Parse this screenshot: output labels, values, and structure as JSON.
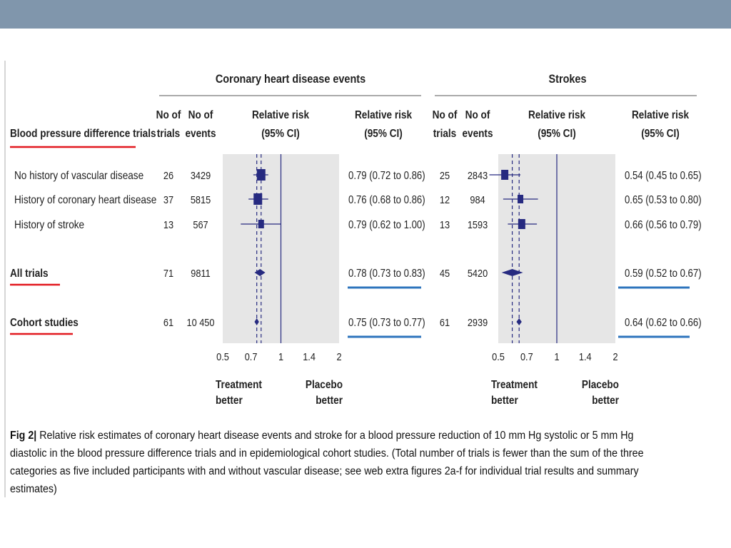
{
  "chart_data": {
    "type": "forest",
    "row_header": "Blood pressure difference trials",
    "panels": [
      {
        "title": "Coronary heart disease events",
        "col_trials": [
          "No of",
          "trials"
        ],
        "col_events": [
          "No of",
          "events"
        ],
        "col_rr_plot": [
          "Relative risk",
          "(95% CI)"
        ],
        "col_rr_text": [
          "Relative risk",
          "(95% CI)"
        ],
        "x_ticks": [
          "0.5",
          "0.7",
          "1",
          "1.4",
          "2"
        ],
        "x_tick_values": [
          0.5,
          0.7,
          1,
          1.4,
          2
        ],
        "xlim": [
          0.5,
          2
        ],
        "x_scale": "log",
        "ref_line": 1,
        "dashed_lines": [
          0.75,
          0.79
        ],
        "label_left": [
          "Treatment",
          "better"
        ],
        "label_right": [
          "Placebo",
          "better"
        ],
        "rows": [
          {
            "label": "No history of vascular disease",
            "trials": "26",
            "events": "3429",
            "rr": 0.79,
            "lo": 0.72,
            "hi": 0.86,
            "text": "0.79 (0.72 to 0.86)",
            "marker": "square",
            "size": 12
          },
          {
            "label": "History of coronary heart disease",
            "trials": "37",
            "events": "5815",
            "rr": 0.76,
            "lo": 0.68,
            "hi": 0.86,
            "text": "0.76 (0.68 to 0.86)",
            "marker": "square",
            "size": 12
          },
          {
            "label": "History of stroke",
            "trials": "13",
            "events": "567",
            "rr": 0.79,
            "lo": 0.62,
            "hi": 1.0,
            "text": "0.79 (0.62 to 1.00)",
            "marker": "square",
            "size": 8
          },
          {
            "label": "All trials",
            "trials": "71",
            "events": "9811",
            "rr": 0.78,
            "lo": 0.73,
            "hi": 0.83,
            "text": "0.78 (0.73 to 0.83)",
            "marker": "diamond"
          },
          {
            "label": "Cohort studies",
            "trials": "61",
            "events": "10 450",
            "rr": 0.75,
            "lo": 0.73,
            "hi": 0.77,
            "text": "0.75 (0.73 to 0.77)",
            "marker": "diamond"
          }
        ]
      },
      {
        "title": "Strokes",
        "col_trials": [
          "No of",
          "trials"
        ],
        "col_events": [
          "No of",
          "events"
        ],
        "col_rr_plot": [
          "Relative risk",
          "(95% CI)"
        ],
        "col_rr_text": [
          "Relative risk",
          "(95% CI)"
        ],
        "x_ticks": [
          "0.5",
          "0.7",
          "1",
          "1.4",
          "2"
        ],
        "x_tick_values": [
          0.5,
          0.7,
          1,
          1.4,
          2
        ],
        "xlim": [
          0.5,
          2
        ],
        "x_scale": "log",
        "ref_line": 1,
        "dashed_lines": [
          0.59,
          0.64
        ],
        "label_left": [
          "Treatment",
          "better"
        ],
        "label_right": [
          "Placebo",
          "better"
        ],
        "rows": [
          {
            "label": "No history of vascular disease",
            "trials": "25",
            "events": "2843",
            "rr": 0.54,
            "lo": 0.45,
            "hi": 0.65,
            "text": "0.54 (0.45 to 0.65)",
            "marker": "square",
            "size": 10
          },
          {
            "label": "History of coronary heart disease",
            "trials": "12",
            "events": "984",
            "rr": 0.65,
            "lo": 0.53,
            "hi": 0.8,
            "text": "0.65 (0.53 to 0.80)",
            "marker": "square",
            "size": 8
          },
          {
            "label": "History of stroke",
            "trials": "13",
            "events": "1593",
            "rr": 0.66,
            "lo": 0.56,
            "hi": 0.79,
            "text": "0.66 (0.56 to 0.79)",
            "marker": "square",
            "size": 10
          },
          {
            "label": "All trials",
            "trials": "45",
            "events": "5420",
            "rr": 0.59,
            "lo": 0.52,
            "hi": 0.67,
            "text": "0.59 (0.52 to 0.67)",
            "marker": "diamond"
          },
          {
            "label": "Cohort studies",
            "trials": "61",
            "events": "2939",
            "rr": 0.64,
            "lo": 0.62,
            "hi": 0.66,
            "text": "0.64 (0.62 to 0.66)",
            "marker": "diamond"
          }
        ]
      }
    ]
  },
  "caption": {
    "prefix": "Fig 2",
    "text": "Relative risk estimates of coronary heart disease events and stroke for a blood pressure reduction of 10 mm Hg systolic or 5 mm Hg diastolic in the blood pressure difference trials and in epidemiological cohort studies. (Total number of trials is fewer than the sum of the three categories as five included participants with and without vascular disease; see web extra figures 2a-f for individual trial results and summary estimates)"
  },
  "colors": {
    "topbar": "#8096ac",
    "marker": "#262a80",
    "plot_bg": "#e6e6e6",
    "red_underline": "#e2191f",
    "blue_underline": "#2e74bd",
    "text": "#222222"
  }
}
